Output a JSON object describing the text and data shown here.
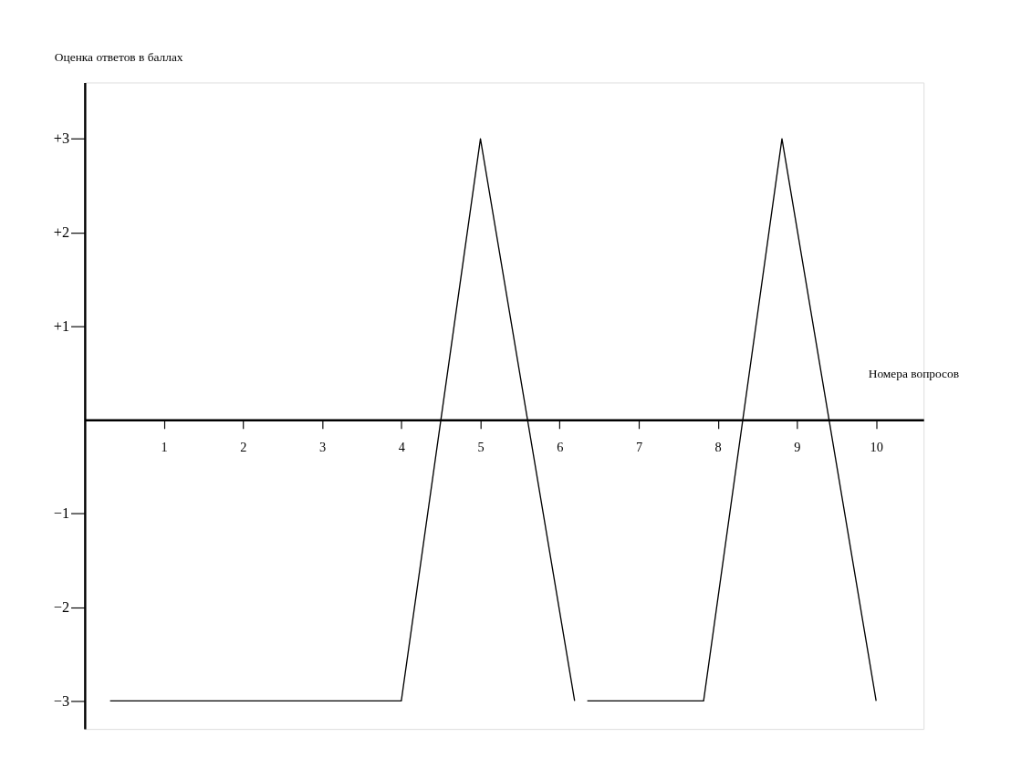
{
  "chart_data": {
    "type": "line",
    "xlabel": "Номера вопросов",
    "ylabel": "Оценка ответов в баллах",
    "series": [
      {
        "color": "#000000",
        "x": [
          0.32,
          4,
          5,
          6.19,
          6.27,
          6.35,
          7.82,
          8.81,
          10
        ],
        "values": [
          -3,
          -3,
          3,
          -3,
          null,
          -3,
          -3,
          3,
          -3
        ]
      }
    ],
    "xlim": [
      0,
      10.6
    ],
    "xticks": [
      1,
      2,
      3,
      4,
      5,
      6,
      7,
      8,
      9,
      10
    ],
    "ylim": [
      -3.3,
      3.6
    ],
    "yticks": [
      {
        "value": 3,
        "label": "+3"
      },
      {
        "value": 2,
        "label": "+2"
      },
      {
        "value": 1,
        "label": "+1"
      },
      {
        "value": -1,
        "label": "−1"
      },
      {
        "value": -2,
        "label": "−2"
      },
      {
        "value": -3,
        "label": "−3"
      }
    ],
    "grid": false,
    "marker": "none",
    "line_style": "solid"
  }
}
